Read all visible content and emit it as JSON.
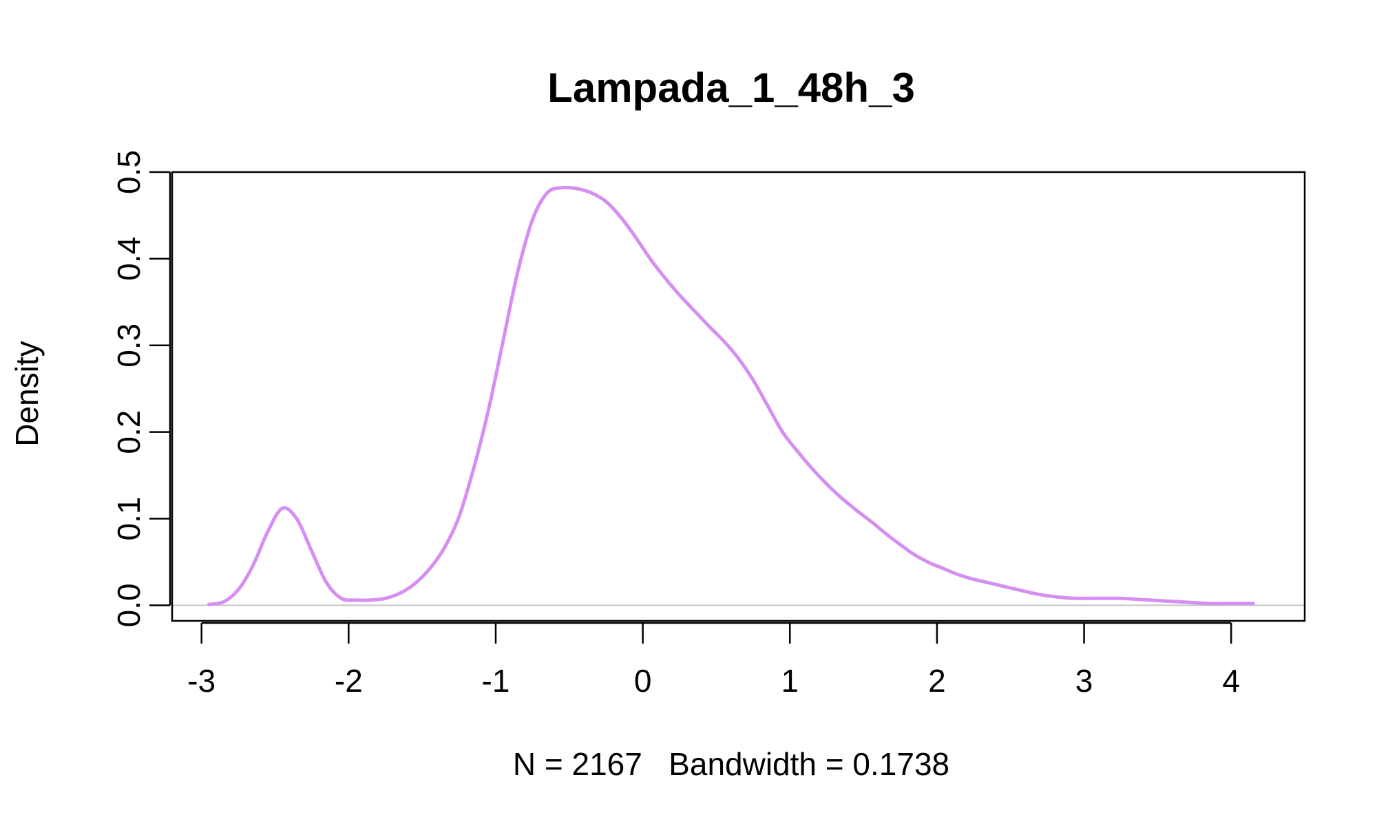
{
  "chart_data": {
    "type": "line",
    "title": "Lampada_1_48h_3",
    "xlabel": "N = 2167   Bandwidth = 0.1738",
    "ylabel": "Density",
    "xlim": [
      -3.2,
      4.5
    ],
    "ylim": [
      -0.018,
      0.5
    ],
    "x_ticks": [
      -3,
      -2,
      -1,
      0,
      1,
      2,
      3,
      4
    ],
    "x_tick_labels": [
      "-3",
      "-2",
      "-1",
      "0",
      "1",
      "2",
      "3",
      "4"
    ],
    "y_ticks": [
      0.0,
      0.1,
      0.2,
      0.3,
      0.4,
      0.5
    ],
    "y_tick_labels": [
      "0.0",
      "0.1",
      "0.2",
      "0.3",
      "0.4",
      "0.5"
    ],
    "grid": false,
    "baseline": 0,
    "baseline_color": "#c8c8c8",
    "line_color": "#d58ff2",
    "series": [
      {
        "x": [
          -2.95,
          -2.85,
          -2.75,
          -2.65,
          -2.55,
          -2.45,
          -2.35,
          -2.25,
          -2.15,
          -2.05,
          -1.95,
          -1.85,
          -1.75,
          -1.65,
          -1.55,
          -1.45,
          -1.35,
          -1.25,
          -1.15,
          -1.05,
          -0.95,
          -0.85,
          -0.75,
          -0.65,
          -0.55,
          -0.45,
          -0.35,
          -0.25,
          -0.15,
          -0.05,
          0.05,
          0.15,
          0.25,
          0.35,
          0.45,
          0.55,
          0.65,
          0.75,
          0.85,
          0.95,
          1.05,
          1.15,
          1.25,
          1.35,
          1.45,
          1.55,
          1.65,
          1.75,
          1.85,
          1.95,
          2.05,
          2.15,
          2.25,
          2.35,
          2.45,
          2.55,
          2.65,
          2.75,
          2.85,
          2.95,
          3.05,
          3.15,
          3.25,
          3.35,
          3.45,
          3.55,
          3.65,
          3.75,
          3.85,
          3.95,
          4.05,
          4.15
        ],
        "values": [
          0.001,
          0.004,
          0.018,
          0.046,
          0.085,
          0.112,
          0.099,
          0.062,
          0.026,
          0.008,
          0.006,
          0.006,
          0.008,
          0.014,
          0.025,
          0.042,
          0.066,
          0.102,
          0.158,
          0.225,
          0.305,
          0.385,
          0.445,
          0.476,
          0.482,
          0.481,
          0.476,
          0.466,
          0.448,
          0.425,
          0.4,
          0.378,
          0.358,
          0.34,
          0.322,
          0.305,
          0.285,
          0.26,
          0.23,
          0.2,
          0.178,
          0.158,
          0.14,
          0.124,
          0.11,
          0.097,
          0.083,
          0.07,
          0.058,
          0.049,
          0.042,
          0.035,
          0.03,
          0.026,
          0.022,
          0.018,
          0.014,
          0.011,
          0.009,
          0.008,
          0.008,
          0.008,
          0.008,
          0.007,
          0.006,
          0.005,
          0.004,
          0.003,
          0.002,
          0.002,
          0.002,
          0.002
        ]
      }
    ]
  }
}
